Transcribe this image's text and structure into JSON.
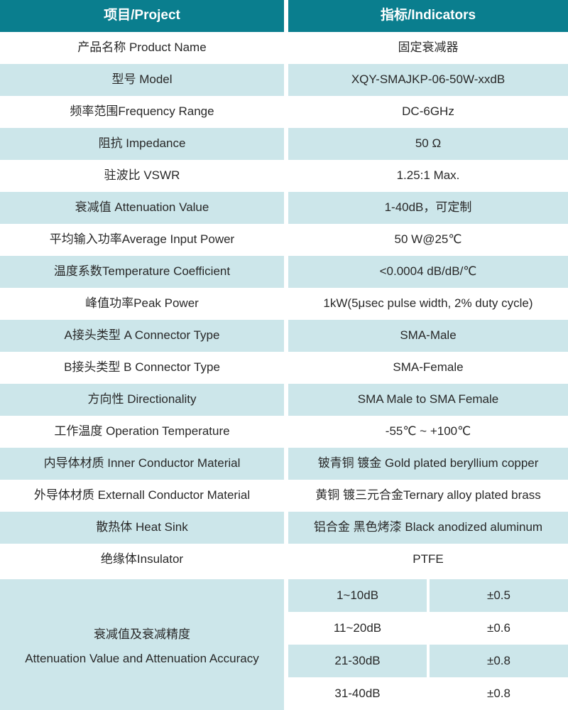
{
  "header": {
    "project": "项目/Project",
    "indicators": "指标/Indicators"
  },
  "rows": [
    {
      "label": "产品名称 Product Name",
      "value": "固定衰减器"
    },
    {
      "label": "型号 Model",
      "value": "XQY-SMAJKP-06-50W-xxdB"
    },
    {
      "label": "频率范围Frequency Range",
      "value": "DC-6GHz"
    },
    {
      "label": "阻抗 Impedance",
      "value": "50 Ω"
    },
    {
      "label": "驻波比 VSWR",
      "value": "1.25:1 Max."
    },
    {
      "label": "衰减值 Attenuation Value",
      "value": "1-40dB，可定制"
    },
    {
      "label": "平均输入功率Average Input Power",
      "value": "50 W@25℃"
    },
    {
      "label": "温度系数Temperature Coefficient",
      "value": "<0.0004 dB/dB/℃"
    },
    {
      "label": "峰值功率Peak Power",
      "value": "1kW(5μsec pulse width, 2% duty cycle)"
    },
    {
      "label": "A接头类型 A Connector Type",
      "value": "SMA-Male"
    },
    {
      "label": "B接头类型 B Connector Type",
      "value": "SMA-Female"
    },
    {
      "label": "方向性 Directionality",
      "value": "SMA Male to SMA Female"
    },
    {
      "label": "工作温度 Operation Temperature",
      "value": "-55℃ ~ +100℃"
    },
    {
      "label": "内导体材质 Inner Conductor Material",
      "value": "铍青铜 镀金 Gold plated beryllium copper"
    },
    {
      "label": "外导体材质 Externall Conductor Material",
      "value": "黄铜 镀三元合金Ternary alloy plated brass"
    },
    {
      "label": "散热体 Heat Sink",
      "value": "铝合金 黑色烤漆 Black anodized aluminum"
    },
    {
      "label": "绝缘体Insulator",
      "value": "PTFE"
    }
  ],
  "attenuation_section": {
    "label_cn": "衰减值及衰减精度",
    "label_en": "Attenuation Value and Attenuation Accuracy",
    "rows": [
      {
        "range": "1~10dB",
        "accuracy": "±0.5"
      },
      {
        "range": "11~20dB",
        "accuracy": "±0.6"
      },
      {
        "range": "21-30dB",
        "accuracy": "±0.8"
      },
      {
        "range": "31-40dB",
        "accuracy": "±0.8"
      }
    ]
  },
  "colors": {
    "header_bg": "#0a7e8e",
    "header_text": "#ffffff",
    "alt_row_bg": "#cce6ea",
    "row_bg": "#ffffff",
    "text": "#282828"
  }
}
